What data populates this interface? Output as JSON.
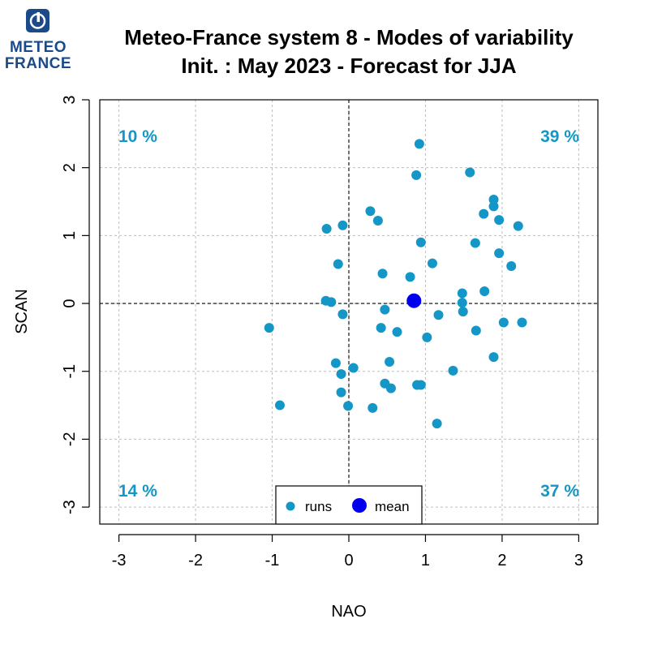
{
  "logo": {
    "text_line1": "METEO",
    "text_line2": "FRANCE",
    "color": "#1a4a8a"
  },
  "chart_data": {
    "type": "scatter",
    "title": "Meteo-France system 8 - Modes of variability",
    "subtitle": "Init. : May 2023 - Forecast for JJA",
    "xlabel": "NAO",
    "ylabel": "SCAN",
    "xlim": [
      -3.25,
      3.25
    ],
    "ylim": [
      -3.25,
      3.0
    ],
    "xticks": [
      -3,
      -2,
      -1,
      0,
      1,
      2,
      3
    ],
    "yticks": [
      -3,
      -2,
      -1,
      0,
      1,
      2,
      3
    ],
    "grid": true,
    "colors": {
      "runs": "#1497c7",
      "mean": "#0000ee",
      "quadrant_text": "#1497c7"
    },
    "quadrant_labels": {
      "top_left": "10 %",
      "top_right": "39 %",
      "bottom_left": "14 %",
      "bottom_right": "37 %"
    },
    "legend": {
      "placement": "bottom-center",
      "entries": [
        "runs",
        "mean"
      ]
    },
    "series": [
      {
        "name": "runs",
        "x": [
          0.92,
          0.88,
          1.58,
          1.89,
          1.89,
          1.76,
          1.96,
          2.21,
          0.28,
          0.38,
          -0.08,
          -0.29,
          0.94,
          1.65,
          1.96,
          2.12,
          1.09,
          0.44,
          0.8,
          -0.14,
          1.48,
          1.77,
          -0.3,
          -0.23,
          1.48,
          1.49,
          0.47,
          -0.08,
          1.17,
          -1.04,
          0.42,
          0.63,
          1.02,
          1.66,
          2.02,
          2.26,
          -0.17,
          0.53,
          0.06,
          -0.1,
          1.89,
          1.36,
          0.47,
          0.55,
          0.89,
          0.94,
          -0.1,
          -0.9,
          -0.01,
          0.31,
          1.15
        ],
        "y": [
          2.35,
          1.89,
          1.93,
          1.53,
          1.43,
          1.32,
          1.23,
          1.14,
          1.36,
          1.22,
          1.15,
          1.1,
          0.9,
          0.89,
          0.74,
          0.55,
          0.59,
          0.44,
          0.39,
          0.58,
          0.15,
          0.18,
          0.04,
          0.02,
          0.01,
          -0.12,
          -0.09,
          -0.16,
          -0.17,
          -0.36,
          -0.36,
          -0.42,
          -0.5,
          -0.4,
          -0.28,
          -0.28,
          -0.88,
          -0.86,
          -0.95,
          -1.04,
          -0.79,
          -0.99,
          -1.18,
          -1.25,
          -1.2,
          -1.2,
          -1.31,
          -1.5,
          -1.51,
          -1.54,
          -1.77
        ]
      },
      {
        "name": "mean",
        "x": [
          0.85
        ],
        "y": [
          0.04
        ]
      }
    ]
  }
}
